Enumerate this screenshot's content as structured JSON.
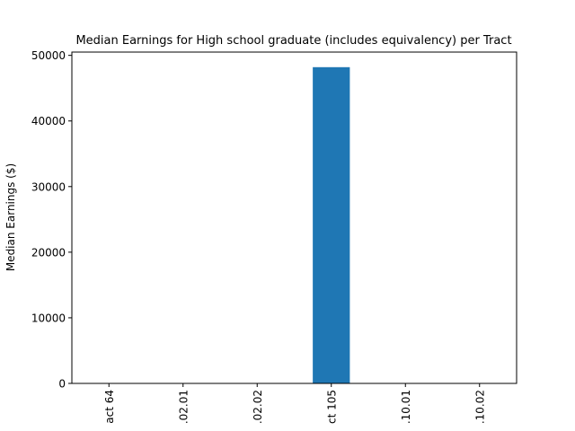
{
  "chart_data": {
    "type": "bar",
    "title": "Median Earnings for High school graduate (includes equivalency) per Tract",
    "y_label": "Median Earnings ($)",
    "categories": [
      "act 64",
      ".02.01",
      ".02.02",
      "ct 105",
      ".10.01",
      ".10.02"
    ],
    "values": [
      0,
      0,
      0,
      48200,
      0,
      0
    ],
    "color": "#1f77b4",
    "ylim": [
      0,
      50500
    ],
    "yticks": [
      0,
      10000,
      20000,
      30000,
      40000,
      50000
    ],
    "grid": false
  }
}
